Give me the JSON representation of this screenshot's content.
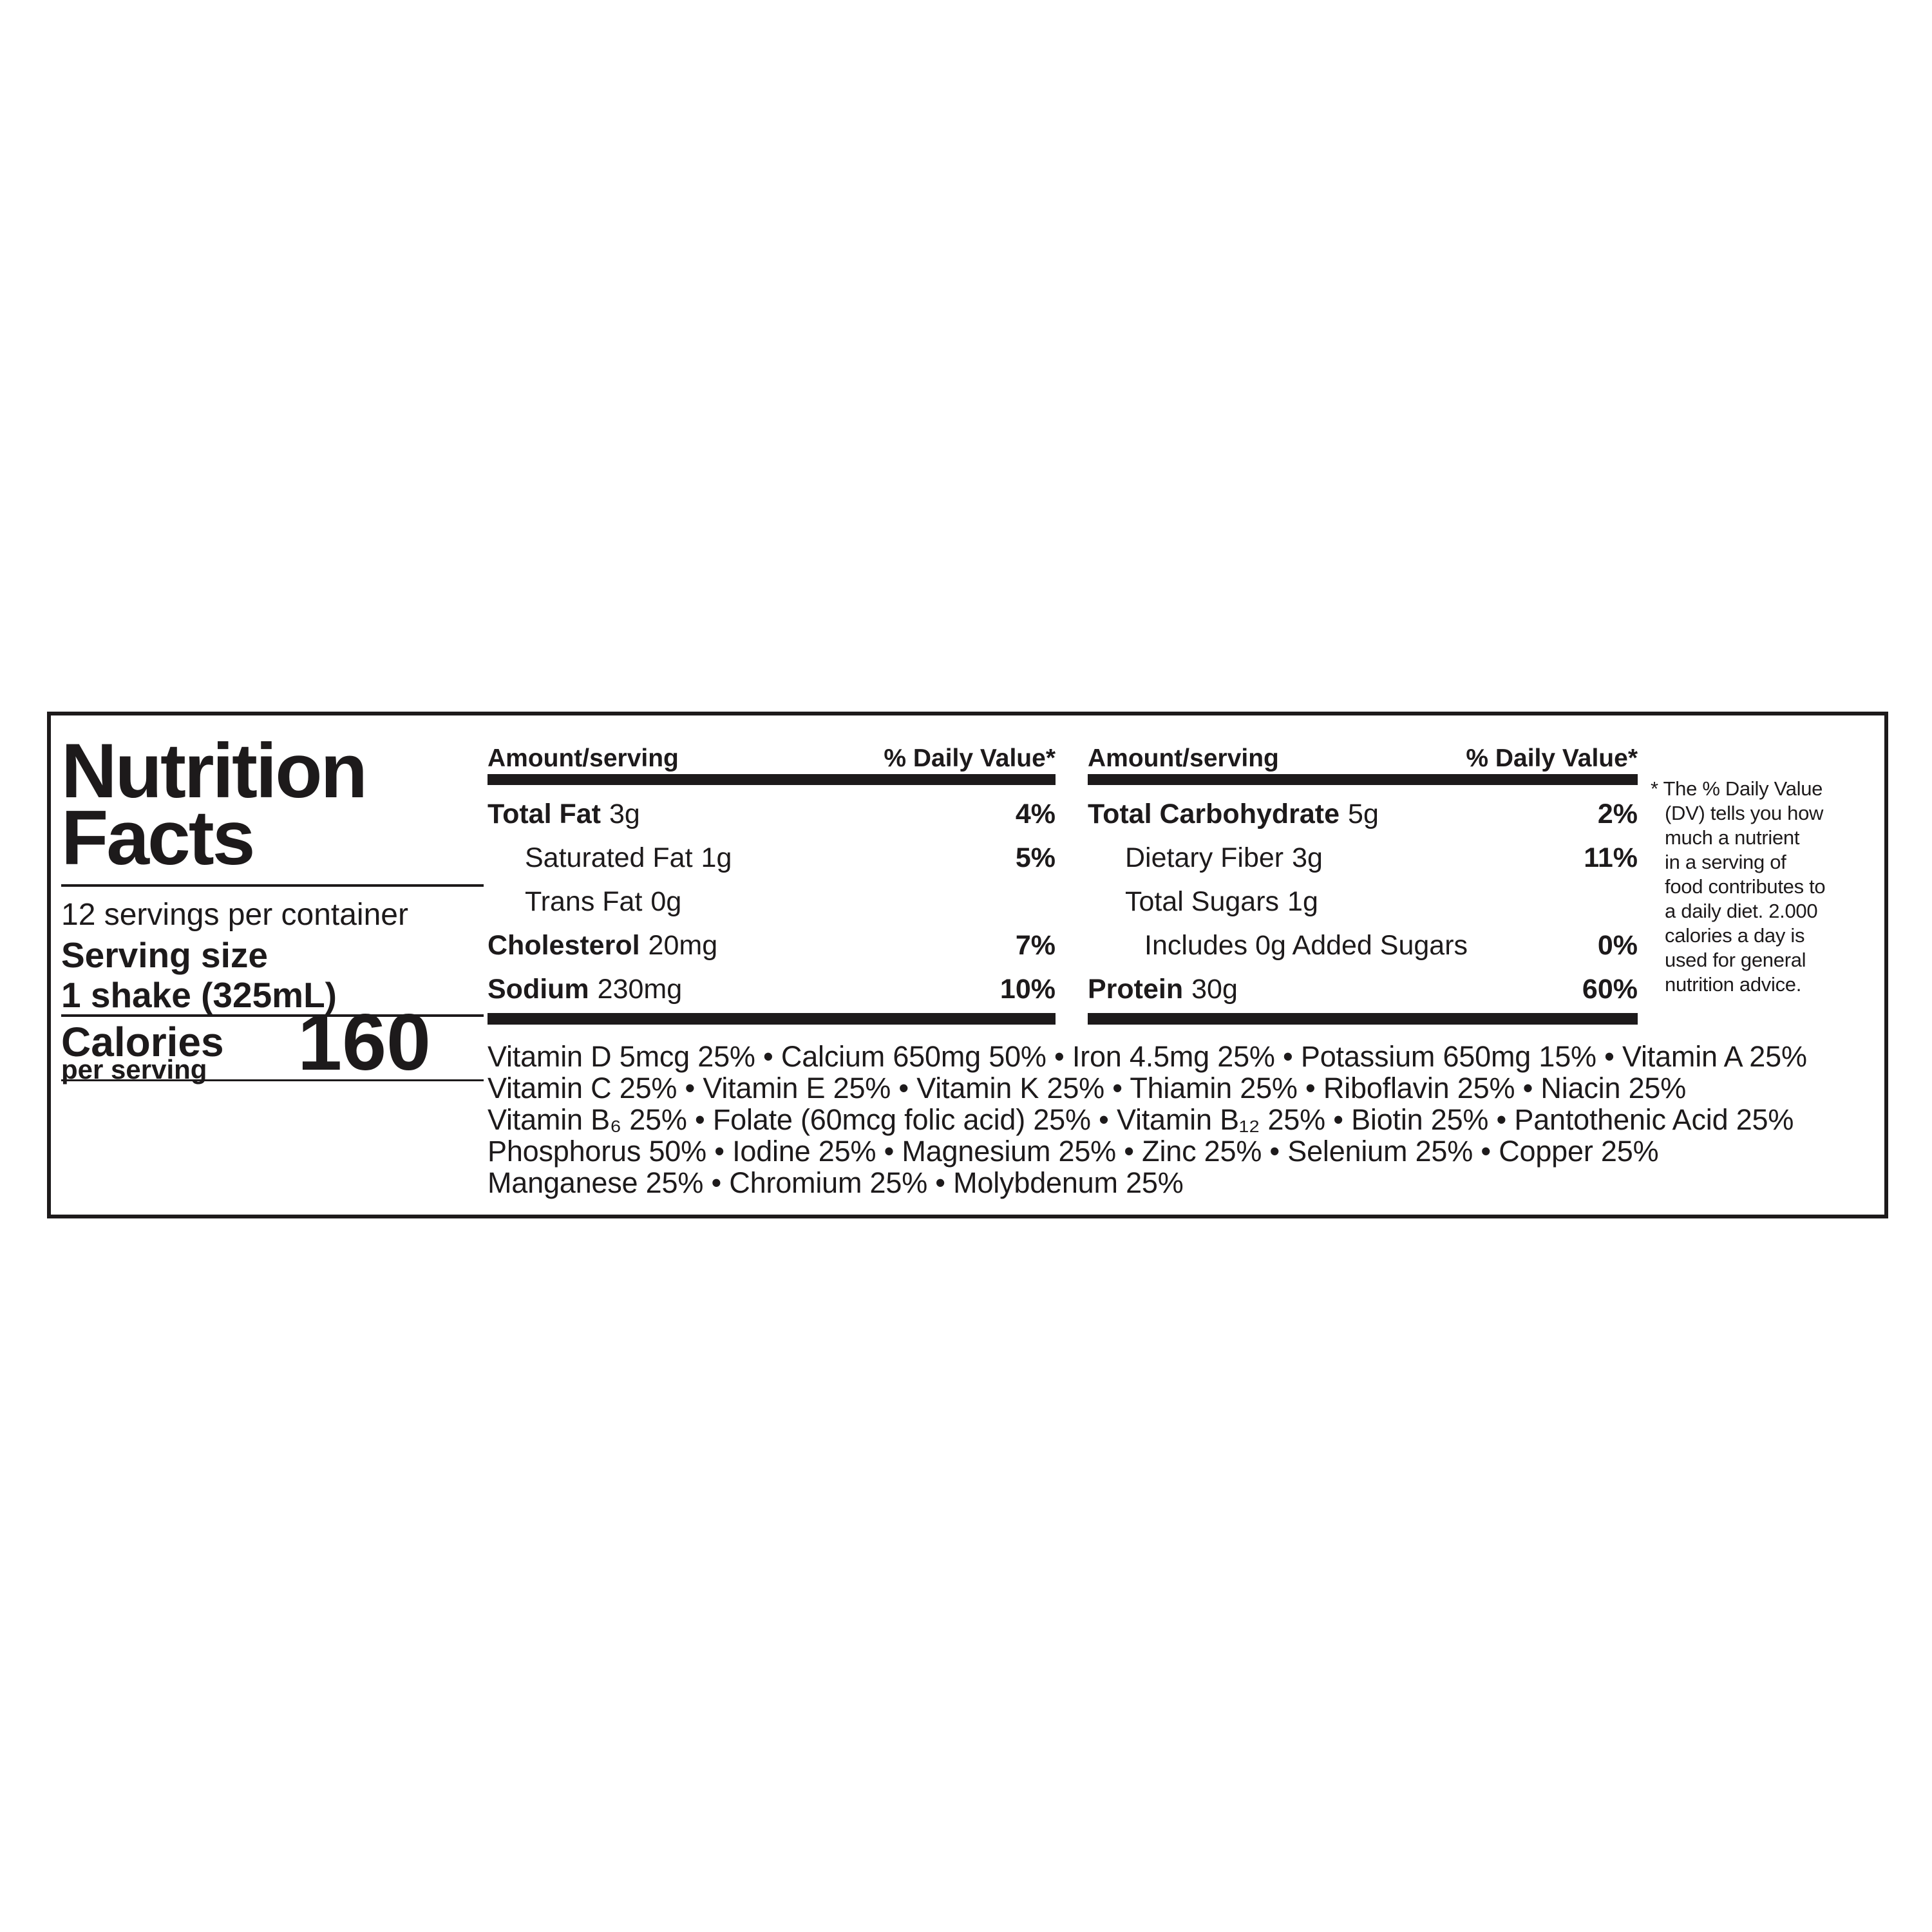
{
  "colors": {
    "text": "#1d1a1b",
    "bar": "#1d1a1b",
    "background": "#ffffff"
  },
  "label": {
    "title_line1": "Nutrition",
    "title_line2": "Facts",
    "servings_per_container": "12 servings per container",
    "serving_size_label": "Serving size",
    "serving_size_value": "1 shake (325mL)",
    "calories": {
      "label": "Calories",
      "sublabel": "per serving",
      "value": "160"
    }
  },
  "columns": [
    {
      "header_amount": "Amount/serving",
      "header_dv": "% Daily Value*",
      "rows": [
        {
          "name": "Total Fat",
          "amount": "3g",
          "dv": "4%"
        },
        {
          "name": "Saturated Fat",
          "amount": "1g",
          "dv": "5%"
        },
        {
          "name": "Trans Fat",
          "amount": "0g",
          "dv": ""
        },
        {
          "name": "Cholesterol",
          "amount": "20mg",
          "dv": "7%"
        },
        {
          "name": "Sodium",
          "amount": "230mg",
          "dv": "10%"
        }
      ]
    },
    {
      "header_amount": "Amount/serving",
      "header_dv": "% Daily Value*",
      "rows": [
        {
          "name": "Total Carbohydrate",
          "amount": "5g",
          "dv": "2%"
        },
        {
          "name": "Dietary Fiber",
          "amount": "3g",
          "dv": "11%"
        },
        {
          "name": "Total Sugars",
          "amount": "1g",
          "dv": ""
        },
        {
          "name": "Includes 0g Added Sugars",
          "amount": "",
          "dv": "0%"
        },
        {
          "name": "Protein",
          "amount": "30g",
          "dv": "60%"
        }
      ]
    }
  ],
  "footnote": {
    "text": "* The % Daily Value\n(DV) tells you how\nmuch a nutrient\nin a serving of\nfood contributes to\na daily diet. 2.000\ncalories a day is\nused for general\nnutrition advice."
  },
  "micronutrients": {
    "lines": [
      "Vitamin D 5mcg 25% • Calcium 650mg 50% • Iron 4.5mg 25% • Potassium 650mg 15% • Vitamin A 25%",
      "Vitamin C 25% • Vitamin E 25% • Vitamin K 25% • Thiamin 25% • Riboflavin 25% • Niacin 25%",
      "Vitamin B₆ 25% • Folate (60mcg folic acid) 25% • Vitamin B₁₂ 25% • Biotin 25% • Pantothenic Acid 25%",
      "Phosphorus 50% • Iodine 25% • Magnesium 25% • Zinc 25% • Selenium 25% • Copper 25%",
      "Manganese 25% • Chromium 25% • Molybdenum 25%"
    ]
  }
}
